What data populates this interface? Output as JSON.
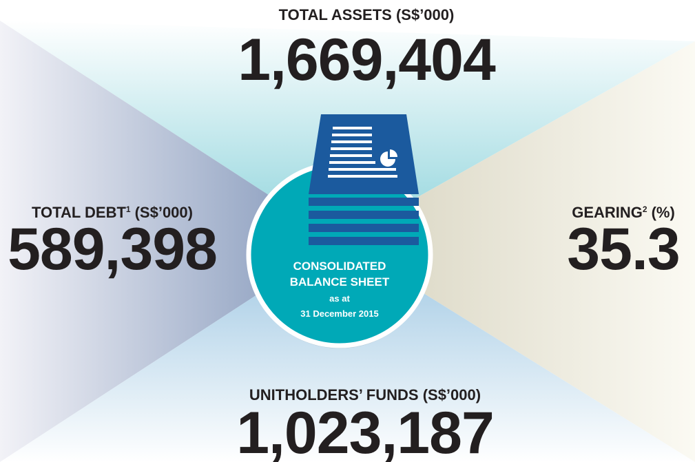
{
  "top": {
    "label": "TOTAL ASSETS (S$’000)",
    "value": "1,669,404"
  },
  "left": {
    "label": "TOTAL DEBT",
    "note": "1",
    "unit": "(S$’000)",
    "value": "589,398"
  },
  "right": {
    "label": "GEARING",
    "note": "2",
    "unit": "(%)",
    "value": "35.3"
  },
  "bottom": {
    "label": "UNITHOLDERS’ FUNDS (S$’000)",
    "value": "1,023,187"
  },
  "center": {
    "title_lines": [
      "CONSOLIDATED",
      "BALANCE SHEET"
    ],
    "subtitle_lines": [
      "as at",
      "31 December 2015"
    ]
  }
}
